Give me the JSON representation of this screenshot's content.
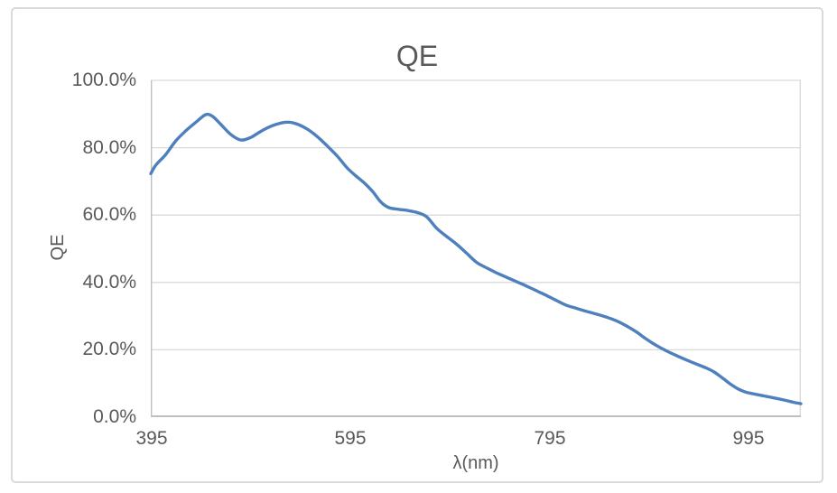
{
  "chart_data": {
    "type": "line",
    "title": "QE",
    "xlabel": "λ(nm)",
    "ylabel": "QE",
    "legend": "none",
    "grid": "horizontal",
    "smooth": true,
    "xlim": [
      395,
      1047
    ],
    "ylim_percent": [
      0,
      100
    ],
    "xticks": [
      395,
      595,
      795,
      995
    ],
    "xtick_labels": [
      "395",
      "595",
      "795",
      "995"
    ],
    "ytick_labels": [
      "100.0%",
      "80.0%",
      "60.0%",
      "40.0%",
      "20.0%",
      "0.0%"
    ],
    "series": [
      {
        "name": "QE",
        "x": [
          395,
          400,
          410,
          420,
          430,
          440,
          450,
          457,
          465,
          475,
          485,
          495,
          505,
          515,
          525,
          533,
          542,
          552,
          562,
          572,
          582,
          592,
          600,
          610,
          618,
          626,
          634,
          644,
          654,
          664,
          672,
          682,
          692,
          702,
          712,
          722,
          732,
          742,
          752,
          762,
          772,
          782,
          792,
          802,
          812,
          822,
          832,
          842,
          852,
          862,
          872,
          882,
          892,
          902,
          912,
          922,
          932,
          942,
          952,
          960,
          968,
          976,
          984,
          992,
          1000,
          1010,
          1020,
          1030,
          1040,
          1047
        ],
        "y_percent": [
          72.3,
          74.8,
          78.0,
          82.0,
          85.0,
          87.5,
          89.8,
          89.3,
          87.0,
          84.0,
          82.3,
          83.0,
          84.8,
          86.3,
          87.3,
          87.6,
          87.0,
          85.5,
          83.3,
          80.5,
          77.5,
          74.0,
          71.8,
          69.3,
          66.8,
          63.8,
          62.2,
          61.7,
          61.3,
          60.6,
          59.4,
          56.0,
          53.6,
          51.3,
          48.6,
          45.9,
          44.3,
          42.8,
          41.5,
          40.2,
          38.9,
          37.5,
          36.1,
          34.6,
          33.2,
          32.3,
          31.4,
          30.6,
          29.7,
          28.6,
          27.1,
          25.3,
          23.2,
          21.3,
          19.7,
          18.3,
          17.0,
          15.8,
          14.6,
          13.4,
          11.7,
          9.9,
          8.4,
          7.4,
          6.9,
          6.3,
          5.7,
          5.1,
          4.4,
          4.0
        ]
      }
    ]
  },
  "colors": {
    "line": "#4e80bd",
    "text": "#595959",
    "gridline": "#d9d9d9",
    "axis": "#bfbfbf",
    "frame_border": "#d9d9d9",
    "background": "#ffffff"
  }
}
